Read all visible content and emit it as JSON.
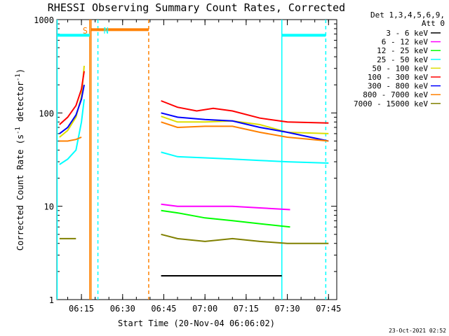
{
  "chart_data": {
    "type": "line",
    "title": "RHESSI Observing Summary Count Rates, Corrected",
    "xlabel": "Start Time (20-Nov-04 06:06:02)",
    "ylabel": "Corrected Count Rate (s",
    "ylabel_sup": "-1",
    "ylabel_suffix": " detector",
    "ylabel_close": ")",
    "y_scale": "log",
    "ylim": [
      1,
      1000
    ],
    "xlim": [
      "06:06:02",
      "07:48:00"
    ],
    "x_ticks": [
      "06:15",
      "06:30",
      "06:45",
      "07:00",
      "07:15",
      "07:30",
      "07:45"
    ],
    "y_ticks": [
      "1",
      "10",
      "100",
      "1000"
    ],
    "legend_position": "right",
    "legend_header": [
      "Det 1,3,4,5,6,9,",
      "Att 0"
    ],
    "grid": false,
    "series": [
      {
        "name": "3 - 6 keV",
        "color": "#000000",
        "points": [
          [
            "06:44:00",
            1.8
          ],
          [
            "06:50:00",
            1.8
          ],
          [
            "07:00:00",
            1.8
          ],
          [
            "07:10:00",
            1.8
          ],
          [
            "07:20:00",
            1.8
          ],
          [
            "07:28:00",
            1.8
          ]
        ]
      },
      {
        "name": "6 - 12 keV",
        "color": "#ff00ff",
        "points": [
          [
            "06:44:00",
            10.5
          ],
          [
            "06:50:00",
            10
          ],
          [
            "07:00:00",
            10
          ],
          [
            "07:10:00",
            10
          ],
          [
            "07:20:00",
            9.6
          ],
          [
            "07:31:00",
            9.2
          ]
        ]
      },
      {
        "name": "12 - 25 keV",
        "color": "#00ff00",
        "points": [
          [
            "06:44:00",
            9
          ],
          [
            "06:50:00",
            8.5
          ],
          [
            "07:00:00",
            7.5
          ],
          [
            "07:10:00",
            7
          ],
          [
            "07:20:00",
            6.5
          ],
          [
            "07:31:00",
            6
          ]
        ]
      },
      {
        "name": "25 - 50 keV",
        "color": "#00ffff",
        "points": [
          [
            "06:07:00",
            28
          ],
          [
            "06:10:00",
            32
          ],
          [
            "06:13:00",
            40
          ],
          [
            "06:15:00",
            80
          ],
          [
            "06:16:00",
            140
          ],
          [
            "06:44:00",
            38
          ],
          [
            "06:50:00",
            34
          ],
          [
            "07:00:00",
            33
          ],
          [
            "07:10:00",
            32
          ],
          [
            "07:20:00",
            31
          ],
          [
            "07:30:00",
            30
          ],
          [
            "07:45:00",
            29
          ]
        ]
      },
      {
        "name": "50 - 100 keV",
        "color": "#dddd00",
        "points": [
          [
            "06:07:00",
            55
          ],
          [
            "06:10:00",
            65
          ],
          [
            "06:13:00",
            90
          ],
          [
            "06:15:00",
            150
          ],
          [
            "06:16:00",
            320
          ],
          [
            "06:44:00",
            92
          ],
          [
            "06:50:00",
            80
          ],
          [
            "07:00:00",
            80
          ],
          [
            "07:10:00",
            82
          ],
          [
            "07:20:00",
            75
          ],
          [
            "07:30:00",
            62
          ],
          [
            "07:45:00",
            60
          ]
        ]
      },
      {
        "name": "100 - 300 keV",
        "color": "#ff0000",
        "points": [
          [
            "06:07:00",
            75
          ],
          [
            "06:10:00",
            90
          ],
          [
            "06:13:00",
            120
          ],
          [
            "06:15:00",
            180
          ],
          [
            "06:16:00",
            280
          ],
          [
            "06:44:00",
            135
          ],
          [
            "06:50:00",
            115
          ],
          [
            "06:57:00",
            105
          ],
          [
            "07:03:00",
            112
          ],
          [
            "07:10:00",
            105
          ],
          [
            "07:20:00",
            88
          ],
          [
            "07:30:00",
            80
          ],
          [
            "07:45:00",
            78
          ]
        ]
      },
      {
        "name": "300 - 800 keV",
        "color": "#0000ff",
        "points": [
          [
            "06:07:00",
            60
          ],
          [
            "06:10:00",
            70
          ],
          [
            "06:13:00",
            95
          ],
          [
            "06:15:00",
            140
          ],
          [
            "06:16:00",
            200
          ],
          [
            "06:44:00",
            100
          ],
          [
            "06:50:00",
            90
          ],
          [
            "07:00:00",
            85
          ],
          [
            "07:10:00",
            82
          ],
          [
            "07:20:00",
            70
          ],
          [
            "07:30:00",
            62
          ],
          [
            "07:45:00",
            50
          ]
        ]
      },
      {
        "name": "800 - 7000 keV",
        "color": "#ff8000",
        "points": [
          [
            "06:07:00",
            50
          ],
          [
            "06:10:00",
            50
          ],
          [
            "06:13:00",
            52
          ],
          [
            "06:15:00",
            55
          ],
          [
            "06:44:00",
            80
          ],
          [
            "06:50:00",
            70
          ],
          [
            "07:00:00",
            72
          ],
          [
            "07:10:00",
            72
          ],
          [
            "07:20:00",
            62
          ],
          [
            "07:30:00",
            55
          ],
          [
            "07:45:00",
            50
          ]
        ]
      },
      {
        "name": "7000 - 15000 keV",
        "color": "#808000",
        "points": [
          [
            "06:07:00",
            4.5
          ],
          [
            "06:10:00",
            4.5
          ],
          [
            "06:13:00",
            4.5
          ],
          [
            "06:44:00",
            5
          ],
          [
            "06:50:00",
            4.5
          ],
          [
            "07:00:00",
            4.2
          ],
          [
            "07:10:00",
            4.5
          ],
          [
            "07:20:00",
            4.2
          ],
          [
            "07:30:00",
            4
          ],
          [
            "07:45:00",
            4
          ]
        ]
      }
    ],
    "annotations": [
      {
        "label": "S",
        "color": "#ff8000",
        "time": "06:18:30"
      },
      {
        "label": "N",
        "color": "#00ffff",
        "time": "06:21:00"
      }
    ],
    "vertical_lines": [
      {
        "time": "06:06:10",
        "color": "#00ffff",
        "style": "solid"
      },
      {
        "time": "06:18:00",
        "color": "#ff8000",
        "style": "solid"
      },
      {
        "time": "06:18:30",
        "color": "#ff8000",
        "style": "solid"
      },
      {
        "time": "06:21:00",
        "color": "#00ffff",
        "style": "dashed"
      },
      {
        "time": "06:39:30",
        "color": "#ff8000",
        "style": "dashed"
      },
      {
        "time": "07:28:00",
        "color": "#00ffff",
        "style": "solid"
      },
      {
        "time": "07:44:00",
        "color": "#00ffff",
        "style": "dashed"
      }
    ],
    "horizontal_bars": [
      {
        "color": "#00ffff",
        "start": "06:06:02",
        "end": "06:18:00",
        "value": 680
      },
      {
        "color": "#ff8000",
        "start": "06:18:30",
        "end": "06:39:30",
        "value": 780
      },
      {
        "color": "#00ffff",
        "start": "07:28:00",
        "end": "07:44:00",
        "value": 680
      }
    ],
    "timestamp": "23-Oct-2021 02:52"
  }
}
